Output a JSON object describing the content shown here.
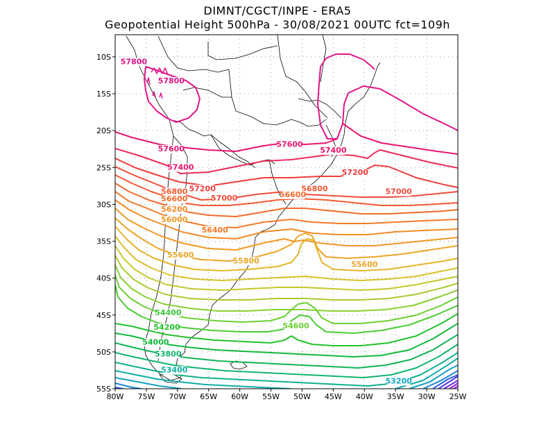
{
  "header": {
    "line1": "DIMNT/CGCT/INPE  -  ERA5",
    "line2": "Geopotential Height 500hPa  -   30/08/2021 00UTC fct=109h"
  },
  "map": {
    "lon_range": [
      -80,
      -25
    ],
    "lat_range": [
      -55,
      -7
    ],
    "lat_ticks": [
      {
        "value": -10,
        "label": "10S"
      },
      {
        "value": -15,
        "label": "15S"
      },
      {
        "value": -20,
        "label": "20S"
      },
      {
        "value": -25,
        "label": "25S"
      },
      {
        "value": -30,
        "label": "30S"
      },
      {
        "value": -35,
        "label": "35S"
      },
      {
        "value": -40,
        "label": "40S"
      },
      {
        "value": -45,
        "label": "45S"
      },
      {
        "value": -50,
        "label": "50S"
      },
      {
        "value": -55,
        "label": "55S"
      }
    ],
    "lon_ticks": [
      {
        "value": -80,
        "label": "80W"
      },
      {
        "value": -75,
        "label": "75W"
      },
      {
        "value": -70,
        "label": "70W"
      },
      {
        "value": -65,
        "label": "65W"
      },
      {
        "value": -60,
        "label": "60W"
      },
      {
        "value": -55,
        "label": "55W"
      },
      {
        "value": -50,
        "label": "50W"
      },
      {
        "value": -45,
        "label": "45W"
      },
      {
        "value": -40,
        "label": "40W"
      },
      {
        "value": -35,
        "label": "35W"
      },
      {
        "value": -30,
        "label": "30W"
      },
      {
        "value": -25,
        "label": "25W"
      }
    ],
    "contour_labels": [
      {
        "text": "57800",
        "lon": -77.0,
        "lat": -11.0,
        "color": "#e0158a"
      },
      {
        "text": "57800",
        "lon": -71.0,
        "lat": -13.6,
        "color": "#e0158a"
      },
      {
        "text": "57600",
        "lon": -71.0,
        "lat": -22.8,
        "color": "#e8146e"
      },
      {
        "text": "57600",
        "lon": -52.0,
        "lat": -22.2,
        "color": "#e8146e"
      },
      {
        "text": "57400",
        "lon": -69.5,
        "lat": -25.3,
        "color": "#e8146e"
      },
      {
        "text": "57400",
        "lon": -45.0,
        "lat": -23.0,
        "color": "#e8146e"
      },
      {
        "text": "57200",
        "lon": -66.0,
        "lat": -28.2,
        "color": "#ee3c3c"
      },
      {
        "text": "57200",
        "lon": -41.5,
        "lat": -26.0,
        "color": "#ee3c3c"
      },
      {
        "text": "57000",
        "lon": -62.5,
        "lat": -29.5,
        "color": "#f04a3a"
      },
      {
        "text": "57000",
        "lon": -34.5,
        "lat": -28.6,
        "color": "#f04a3a"
      },
      {
        "text": "56800",
        "lon": -70.5,
        "lat": -28.6,
        "color": "#f25a32"
      },
      {
        "text": "56800",
        "lon": -48.0,
        "lat": -28.2,
        "color": "#f25a32"
      },
      {
        "text": "56600",
        "lon": -70.5,
        "lat": -29.6,
        "color": "#f26a2a"
      },
      {
        "text": "56600",
        "lon": -51.5,
        "lat": -29.0,
        "color": "#f26a2a"
      },
      {
        "text": "56200",
        "lon": -70.5,
        "lat": -31.0,
        "color": "#f28a26"
      },
      {
        "text": "56000",
        "lon": -70.5,
        "lat": -32.4,
        "color": "#f09824"
      },
      {
        "text": "56400",
        "lon": -64.0,
        "lat": -33.8,
        "color": "#f27a28"
      },
      {
        "text": "55600",
        "lon": -69.5,
        "lat": -37.2,
        "color": "#e8a626"
      },
      {
        "text": "55800",
        "lon": -59.0,
        "lat": -38.0,
        "color": "#e8a626"
      },
      {
        "text": "55600",
        "lon": -40.0,
        "lat": -38.5,
        "color": "#e8a626"
      },
      {
        "text": "54400",
        "lon": -71.5,
        "lat": -45.0,
        "color": "#3ac83a"
      },
      {
        "text": "54600",
        "lon": -51.0,
        "lat": -46.8,
        "color": "#6ad032"
      },
      {
        "text": "54200",
        "lon": -71.7,
        "lat": -47.0,
        "color": "#22c22a"
      },
      {
        "text": "54000",
        "lon": -73.5,
        "lat": -49.0,
        "color": "#12b83a"
      },
      {
        "text": "53800",
        "lon": -71.5,
        "lat": -50.6,
        "color": "#10b470"
      },
      {
        "text": "53400",
        "lon": -70.5,
        "lat": -52.8,
        "color": "#10b0a6"
      },
      {
        "text": "53200",
        "lon": -34.5,
        "lat": -54.3,
        "color": "#10a8c8"
      }
    ]
  },
  "colors": {
    "grid": "#999999",
    "coast": "#000000"
  }
}
